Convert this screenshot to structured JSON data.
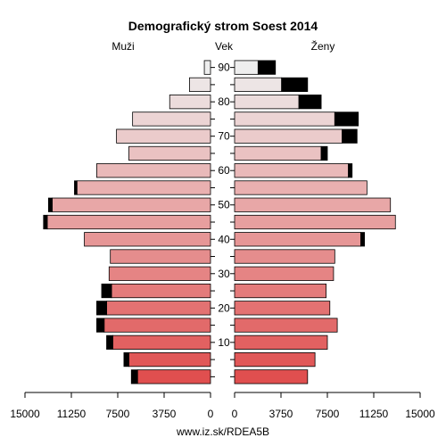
{
  "chart_data": {
    "type": "bar",
    "title": "Demografický strom Soest 2014",
    "left_label": "Muži",
    "center_label": "Vek",
    "right_label": "Ženy",
    "footer": "www.iz.sk/RDEA5B",
    "x_max": 15000,
    "x_ticks": [
      0,
      3750,
      7500,
      11250,
      15000
    ],
    "x_tick_labels_left": [
      "15000",
      "11250",
      "7500",
      "3750",
      "0"
    ],
    "x_tick_labels_right": [
      "0",
      "3750",
      "7500",
      "11250",
      "15000"
    ],
    "age_labels": [
      "90",
      "80",
      "70",
      "60",
      "50",
      "40",
      "30",
      "20",
      "10"
    ],
    "age_groups": [
      "0-4",
      "5-9",
      "10-14",
      "15-19",
      "20-24",
      "25-29",
      "30-34",
      "35-39",
      "40-44",
      "45-49",
      "50-54",
      "55-59",
      "60-64",
      "65-69",
      "70-74",
      "75-79",
      "80-84",
      "85-89",
      "90+"
    ],
    "series": [
      {
        "name": "Muži",
        "values": [
          5900,
          6600,
          7900,
          8600,
          8400,
          8000,
          8200,
          8100,
          10200,
          13200,
          12800,
          10800,
          9200,
          6600,
          7600,
          6300,
          3300,
          1700,
          500
        ],
        "excess": [
          0,
          0,
          0,
          0,
          0,
          0,
          0,
          0,
          0,
          0,
          0,
          0,
          0,
          0,
          0,
          0,
          0,
          0,
          0
        ],
        "shortfall": [
          500,
          400,
          500,
          600,
          800,
          800,
          0,
          0,
          0,
          300,
          300,
          200,
          0,
          0,
          0,
          0,
          0,
          0,
          0
        ]
      },
      {
        "name": "Ženy",
        "values": [
          5900,
          6500,
          7500,
          8300,
          7700,
          7400,
          8000,
          8100,
          10200,
          13000,
          12600,
          10700,
          9200,
          7000,
          8700,
          8100,
          5200,
          3800,
          1900
        ],
        "excess": [
          0,
          0,
          0,
          0,
          0,
          0,
          0,
          0,
          300,
          0,
          0,
          0,
          300,
          500,
          1200,
          1900,
          1800,
          2100,
          1400
        ],
        "shortfall": [
          0,
          0,
          0,
          0,
          0,
          0,
          0,
          0,
          0,
          0,
          0,
          0,
          0,
          0,
          0,
          0,
          0,
          0,
          0
        ]
      }
    ]
  }
}
